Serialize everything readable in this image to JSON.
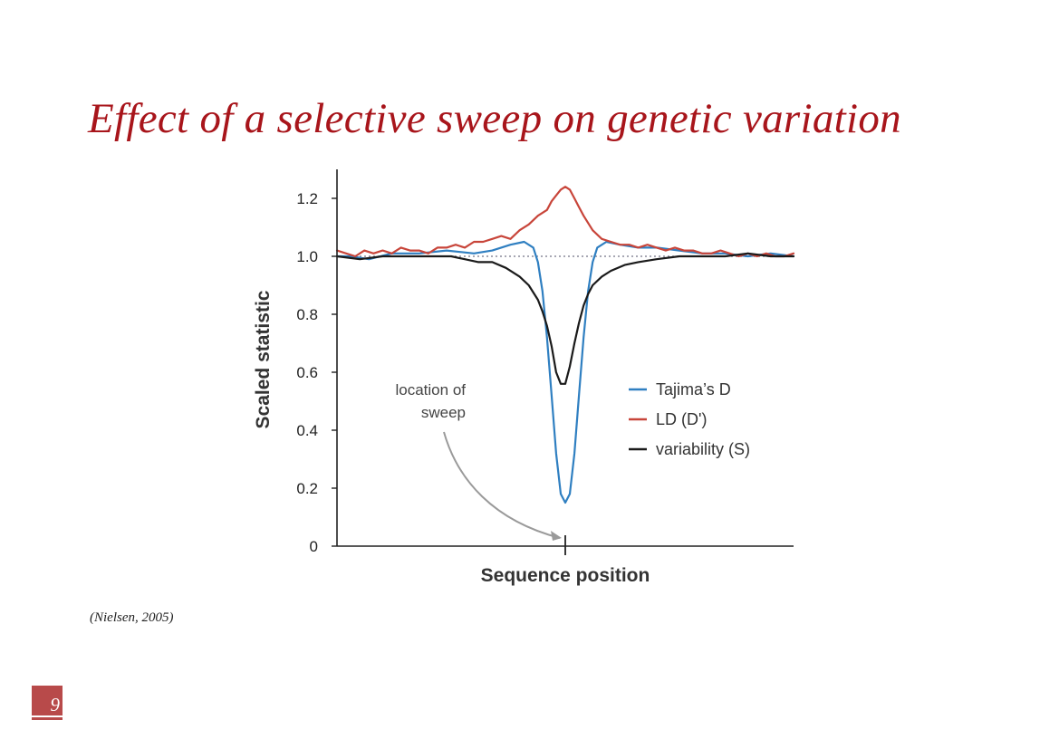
{
  "slide": {
    "title": "Effect of a selective sweep on genetic variation",
    "citation": "(Nielsen, 2005)",
    "page_number": "9"
  },
  "colors": {
    "title": "#a8151b",
    "tajima": "#2f7fc1",
    "ld": "#c8453a",
    "variability": "#1a1a1a",
    "reference_line": "#8a8a9a",
    "annotation_arrow": "#9a9a9a",
    "page_badge": "#b84a4a"
  },
  "chart_data": {
    "type": "line",
    "title": "",
    "xlabel": "Sequence position",
    "ylabel": "Scaled statistic",
    "xlim": [
      0,
      100
    ],
    "ylim": [
      0,
      1.3
    ],
    "yticks": [
      "0",
      "0.2",
      "0.4",
      "0.6",
      "0.8",
      "1.0",
      "1.2"
    ],
    "ytick_values": [
      0,
      0.2,
      0.4,
      0.6,
      0.8,
      1.0,
      1.2
    ],
    "xtick_values": [
      50
    ],
    "reference_line": {
      "y": 1.0,
      "style": "dotted"
    },
    "legend_position": "center-right",
    "annotation": {
      "text_lines": [
        "location of",
        "sweep"
      ],
      "points_to_x": 50
    },
    "series": [
      {
        "name": "Tajima’s D",
        "color": "#2f7fc1",
        "x": [
          0,
          3,
          7,
          12,
          18,
          24,
          30,
          34,
          38,
          41,
          43,
          44,
          45,
          46,
          47,
          48,
          49,
          50,
          51,
          52,
          53,
          54,
          55,
          56,
          57,
          59,
          62,
          66,
          70,
          75,
          80,
          85,
          90,
          95,
          100
        ],
        "y": [
          1.0,
          1.0,
          0.99,
          1.01,
          1.01,
          1.02,
          1.01,
          1.02,
          1.04,
          1.05,
          1.03,
          0.98,
          0.88,
          0.72,
          0.52,
          0.32,
          0.18,
          0.15,
          0.18,
          0.32,
          0.52,
          0.72,
          0.88,
          0.98,
          1.03,
          1.05,
          1.04,
          1.03,
          1.03,
          1.02,
          1.01,
          1.01,
          1.0,
          1.01,
          1.0
        ]
      },
      {
        "name": "LD (D')",
        "color": "#c8453a",
        "x": [
          0,
          2,
          4,
          6,
          8,
          10,
          12,
          14,
          16,
          18,
          20,
          22,
          24,
          26,
          28,
          30,
          32,
          34,
          36,
          38,
          40,
          42,
          44,
          46,
          47,
          48,
          49,
          50,
          51,
          52,
          53,
          54,
          56,
          58,
          60,
          62,
          64,
          66,
          68,
          70,
          72,
          74,
          76,
          78,
          80,
          82,
          84,
          86,
          88,
          90,
          92,
          94,
          96,
          98,
          100
        ],
        "y": [
          1.02,
          1.01,
          1.0,
          1.02,
          1.01,
          1.02,
          1.01,
          1.03,
          1.02,
          1.02,
          1.01,
          1.03,
          1.03,
          1.04,
          1.03,
          1.05,
          1.05,
          1.06,
          1.07,
          1.06,
          1.09,
          1.11,
          1.14,
          1.16,
          1.19,
          1.21,
          1.23,
          1.24,
          1.23,
          1.2,
          1.17,
          1.14,
          1.09,
          1.06,
          1.05,
          1.04,
          1.04,
          1.03,
          1.04,
          1.03,
          1.02,
          1.03,
          1.02,
          1.02,
          1.01,
          1.01,
          1.02,
          1.01,
          1.0,
          1.01,
          1.0,
          1.01,
          1.0,
          1.0,
          1.01
        ]
      },
      {
        "name": "variability (S)",
        "color": "#1a1a1a",
        "x": [
          0,
          5,
          10,
          15,
          20,
          25,
          28,
          31,
          34,
          37,
          40,
          42,
          44,
          45,
          46,
          47,
          48,
          49,
          50,
          51,
          52,
          53,
          54,
          55,
          56,
          58,
          60,
          63,
          66,
          70,
          75,
          80,
          85,
          90,
          95,
          100
        ],
        "y": [
          1.0,
          0.99,
          1.0,
          1.0,
          1.0,
          1.0,
          0.99,
          0.98,
          0.98,
          0.96,
          0.93,
          0.9,
          0.85,
          0.81,
          0.76,
          0.69,
          0.6,
          0.56,
          0.56,
          0.62,
          0.7,
          0.77,
          0.83,
          0.87,
          0.9,
          0.93,
          0.95,
          0.97,
          0.98,
          0.99,
          1.0,
          1.0,
          1.0,
          1.01,
          1.0,
          1.0
        ]
      }
    ]
  }
}
